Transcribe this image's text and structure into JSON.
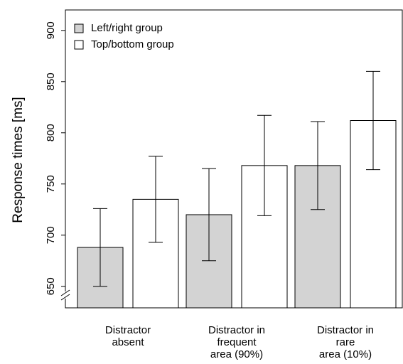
{
  "chart_data": {
    "type": "bar",
    "y_label": "Response times [ms]",
    "categories": [
      [
        "Distractor",
        "absent"
      ],
      [
        "Distractor in",
        "frequent",
        "area (90%)"
      ],
      [
        "Distractor in",
        "rare",
        "area (10%)"
      ]
    ],
    "series": [
      {
        "name": "Left/right group",
        "color": "#d3d3d3",
        "values": [
          688,
          720,
          768
        ],
        "errors": [
          38,
          45,
          43
        ]
      },
      {
        "name": "Top/bottom group",
        "color": "#ffffff",
        "values": [
          735,
          768,
          812
        ],
        "errors": [
          42,
          49,
          48
        ]
      }
    ],
    "ylim": [
      629,
      920
    ],
    "yticks": [
      650,
      700,
      750,
      800,
      850,
      900
    ],
    "legend": "upper left"
  }
}
